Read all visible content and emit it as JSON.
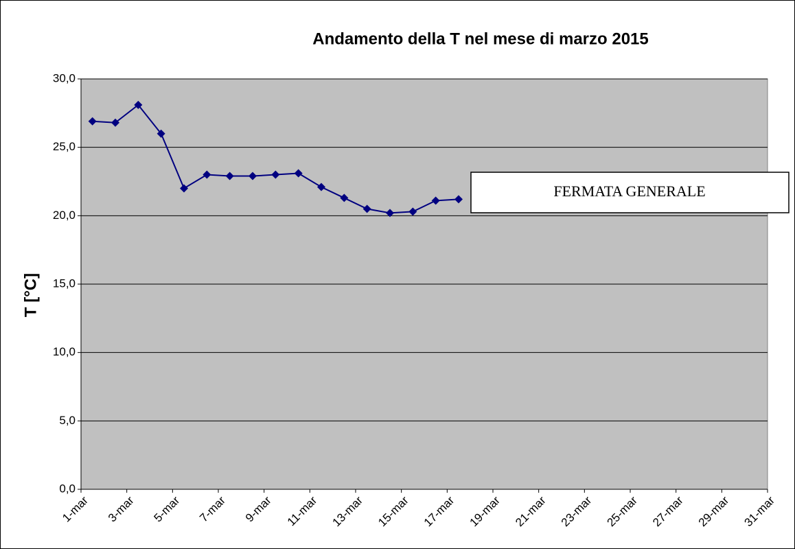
{
  "chart_data": {
    "type": "line",
    "title": "Andamento della T nel mese di marzo 2015",
    "y_label": "T [°C]",
    "annotation": "FERMATA GENERALE",
    "categories": [
      "1-mar",
      null,
      "3-mar",
      null,
      "5-mar",
      null,
      "7-mar",
      null,
      "9-mar",
      null,
      "11-mar",
      null,
      "13-mar",
      null,
      "15-mar",
      null,
      "17-mar",
      null,
      "19-mar",
      null,
      "21-mar",
      null,
      "23-mar",
      null,
      "25-mar",
      null,
      "27-mar",
      null,
      "29-mar",
      null,
      "31-mar"
    ],
    "series": [
      {
        "name": "T",
        "color": "#000080",
        "values": [
          26.9,
          26.8,
          28.1,
          26.0,
          22.0,
          23.0,
          22.9,
          22.9,
          23.0,
          23.1,
          22.1,
          21.3,
          20.5,
          20.2,
          20.3,
          21.1,
          21.2,
          null,
          null,
          null,
          null,
          null,
          null,
          null,
          null,
          null,
          null,
          null,
          null,
          null,
          null
        ]
      }
    ],
    "ylim": [
      0,
      30
    ],
    "yticks": [
      {
        "value": 0,
        "label": "0,0"
      },
      {
        "value": 5,
        "label": "5,0"
      },
      {
        "value": 10,
        "label": "10,0"
      },
      {
        "value": 15,
        "label": "15,0"
      },
      {
        "value": 20,
        "label": "20,0"
      },
      {
        "value": 25,
        "label": "25,0"
      },
      {
        "value": 30,
        "label": "30,0"
      }
    ],
    "grid": true,
    "plot_background": "#c0c0c0"
  }
}
